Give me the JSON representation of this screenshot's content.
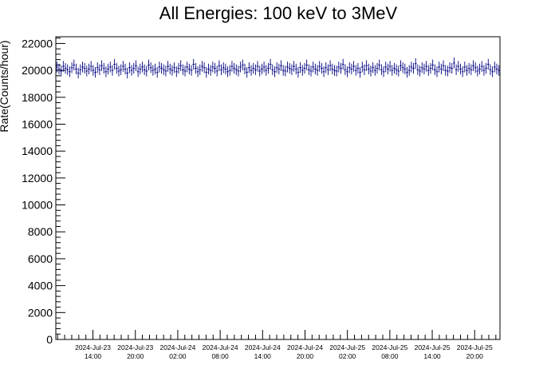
{
  "chart_data": {
    "type": "scatter",
    "style": "histogram with vertical error bars",
    "title": "All Energies:  100 keV to 3MeV",
    "xlabel": "",
    "ylabel": "Rate(Counts/hour)",
    "ylim": [
      0,
      22500
    ],
    "yticks": [
      0,
      2000,
      4000,
      6000,
      8000,
      10000,
      12000,
      14000,
      16000,
      18000,
      20000,
      22000
    ],
    "xlim": [
      "2024-07-23 08:45",
      "2024-07-25 23:35"
    ],
    "xticks": [
      {
        "date": "2024-Jul-23",
        "time": "14:00",
        "x": "2024-07-23 14:00"
      },
      {
        "date": "2024-Jul-23",
        "time": "20:00",
        "x": "2024-07-23 20:00"
      },
      {
        "date": "2024-Jul-24",
        "time": "02:00",
        "x": "2024-07-24 02:00"
      },
      {
        "date": "2024-Jul-24",
        "time": "08:00",
        "x": "2024-07-24 08:00"
      },
      {
        "date": "2024-Jul-24",
        "time": "14:00",
        "x": "2024-07-24 14:00"
      },
      {
        "date": "2024-Jul-24",
        "time": "20:00",
        "x": "2024-07-24 20:00"
      },
      {
        "date": "2024-Jul-25",
        "time": "02:00",
        "x": "2024-07-25 02:00"
      },
      {
        "date": "2024-Jul-25",
        "time": "08:00",
        "x": "2024-07-25 08:00"
      },
      {
        "date": "2024-Jul-25",
        "time": "14:00",
        "x": "2024-07-25 14:00"
      },
      {
        "date": "2024-Jul-25",
        "time": "20:00",
        "x": "2024-07-25 20:00"
      }
    ],
    "series": [
      {
        "color": "#000080",
        "x_start": "2024-07-23 08:45",
        "x_end": "2024-07-25 23:35",
        "values": [
          20250,
          20100,
          19950,
          20300,
          20150,
          20050,
          19900,
          20200,
          20400,
          20100,
          19800,
          20050,
          20250,
          20150,
          19950,
          20100,
          20300,
          20000,
          19850,
          20200,
          20050,
          20350,
          20150,
          19900,
          20100,
          20250,
          20000,
          20450,
          20150,
          19950,
          20050,
          20300,
          20100,
          19800,
          20200,
          20000,
          20150,
          20350,
          19900,
          20100,
          20250,
          20050,
          19950,
          20400,
          20200,
          20000,
          20100,
          19850,
          20250,
          20150,
          20050,
          19950,
          20300,
          20100,
          20000,
          20200,
          19900,
          20150,
          20350,
          20050,
          19950,
          20250,
          20100,
          20000,
          20450,
          20150,
          19900,
          20050,
          20300,
          20200,
          19850,
          20100,
          20000,
          20250,
          20150,
          19950,
          20350,
          20050,
          20200,
          20100,
          19900,
          20000,
          20300,
          20150,
          20050,
          19950,
          20250,
          20400,
          20100,
          19850,
          20200,
          20000,
          20150,
          20050,
          20300,
          19950,
          20100,
          20250,
          20000,
          20150,
          20450,
          20050,
          19900,
          20200,
          20100,
          20350,
          20000,
          19950,
          20250,
          20150,
          20050,
          20300,
          20100,
          19850,
          20200,
          20000,
          20150,
          20400,
          20050,
          19950,
          20250,
          20100,
          20000,
          20300,
          20150,
          19900,
          20200,
          20050,
          20350,
          20100,
          20000,
          19950,
          20250,
          20150,
          20450,
          20050,
          19900,
          20200,
          20100,
          20300,
          20000,
          20150,
          19850,
          20250,
          20050,
          20350,
          20100,
          19950,
          20200,
          20000,
          20150,
          20400,
          20050,
          19900,
          20250,
          20100,
          20300,
          20000,
          20150,
          20050,
          19950,
          20350,
          20200,
          20100,
          19850,
          20000,
          20250,
          20150,
          20500,
          20050,
          19950,
          20200,
          20100,
          20300,
          20000,
          20150,
          20400,
          20050,
          19900,
          20250,
          20100,
          20350,
          20000,
          19950,
          20200,
          20150,
          20550,
          20050,
          20300,
          20100,
          19900,
          20250,
          20000,
          20150,
          20050,
          20350,
          20200,
          19950,
          20100,
          20300,
          20000,
          20150,
          20450,
          20050,
          19900,
          20250,
          20100,
          20000
        ]
      }
    ]
  }
}
